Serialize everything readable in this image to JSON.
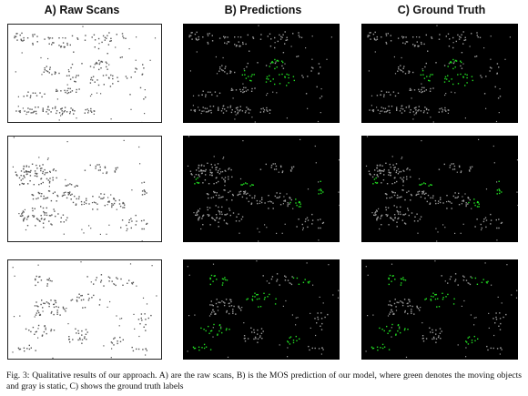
{
  "columns": [
    {
      "title": "A) Raw Scans"
    },
    {
      "title": "B) Predictions"
    },
    {
      "title": "C) Ground Truth"
    }
  ],
  "colors": {
    "raw_points": "#555555",
    "static_points": "#9a9a9a",
    "moving_points": "#22dd22",
    "background_dark": "#000000",
    "background_raw": "#ffffff"
  },
  "rows": [
    {
      "scene": "scene-1"
    },
    {
      "scene": "scene-2"
    },
    {
      "scene": "scene-3"
    }
  ],
  "caption": "Fig. 3: Qualitative results of our approach. A) are the raw scans, B) is the MOS prediction of our model, where green denotes the moving objects and gray is static, C) shows the ground truth labels"
}
